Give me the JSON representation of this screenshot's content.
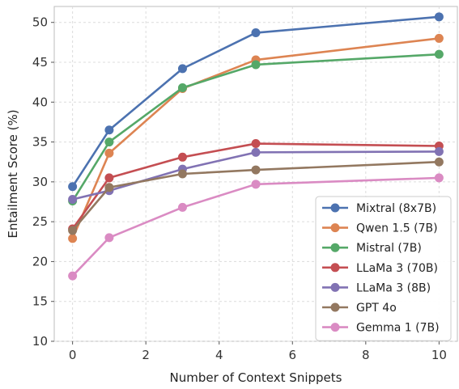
{
  "chart_data": {
    "type": "line",
    "title": "",
    "xlabel": "Number of Context Snippets",
    "ylabel": "Entailment Score (%)",
    "xlim": [
      -0.5,
      10.5
    ],
    "ylim": [
      10,
      52
    ],
    "xticks": [
      0,
      2,
      4,
      6,
      8,
      10
    ],
    "yticks": [
      10,
      15,
      20,
      25,
      30,
      35,
      40,
      45,
      50
    ],
    "grid": true,
    "legend_position": "bottom-right",
    "x": [
      0,
      1,
      3,
      5,
      10
    ],
    "series": [
      {
        "name": "Mixtral (8x7B)",
        "color": "#4C72B0",
        "values": [
          29.4,
          36.5,
          44.2,
          48.7,
          50.7
        ]
      },
      {
        "name": "Qwen 1.5 (7B)",
        "color": "#DD8452",
        "values": [
          22.9,
          33.6,
          41.7,
          45.3,
          48.0
        ]
      },
      {
        "name": "Mistral (7B)",
        "color": "#55A868",
        "values": [
          27.6,
          35.0,
          41.8,
          44.7,
          46.0
        ]
      },
      {
        "name": "LLaMa 3 (70B)",
        "color": "#C44E52",
        "values": [
          24.1,
          30.5,
          33.1,
          34.8,
          34.5
        ]
      },
      {
        "name": "LLaMa 3 (8B)",
        "color": "#8172B3",
        "values": [
          27.8,
          28.9,
          31.6,
          33.7,
          33.8
        ]
      },
      {
        "name": "GPT 4o",
        "color": "#937860",
        "values": [
          23.9,
          29.3,
          31.0,
          31.5,
          32.5
        ]
      },
      {
        "name": "Gemma 1 (7B)",
        "color": "#DA8BC3",
        "values": [
          18.2,
          23.0,
          26.8,
          29.7,
          30.5
        ]
      }
    ]
  }
}
